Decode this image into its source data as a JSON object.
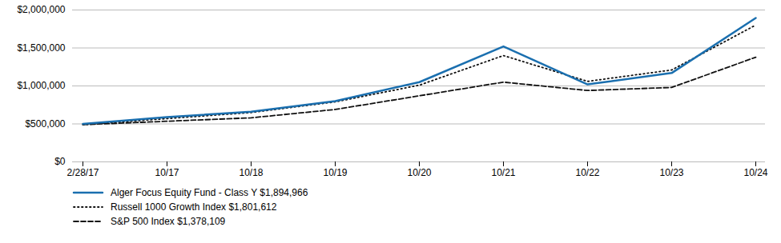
{
  "chart_data": {
    "type": "line",
    "categories": [
      "2/28/17",
      "10/17",
      "10/18",
      "10/19",
      "10/20",
      "10/21",
      "10/22",
      "10/23",
      "10/24"
    ],
    "series": [
      {
        "name": "Alger Focus Equity Fund - Class Y $1,894,966",
        "color": "#1a6faf",
        "line_style": "solid",
        "values": [
          500000,
          590000,
          660000,
          800000,
          1050000,
          1520000,
          1020000,
          1170000,
          1894966
        ]
      },
      {
        "name": "Russell 1000 Growth Index $1,801,612",
        "color": "#111111",
        "line_style": "dotted",
        "values": [
          490000,
          570000,
          650000,
          790000,
          1010000,
          1400000,
          1060000,
          1210000,
          1801612
        ]
      },
      {
        "name": "S&P 500 Index $1,378,109",
        "color": "#111111",
        "line_style": "dashed",
        "values": [
          490000,
          535000,
          580000,
          690000,
          870000,
          1050000,
          940000,
          980000,
          1378109
        ]
      }
    ],
    "ylim": [
      0,
      2000000
    ],
    "yticks": [
      {
        "value": 0,
        "label": "$0"
      },
      {
        "value": 500000,
        "label": "$500,000"
      },
      {
        "value": 1000000,
        "label": "$1,000,000"
      },
      {
        "value": 1500000,
        "label": "$1,500,000"
      },
      {
        "value": 2000000,
        "label": "$2,000,000"
      }
    ],
    "grid": true,
    "legend": "bottom"
  }
}
